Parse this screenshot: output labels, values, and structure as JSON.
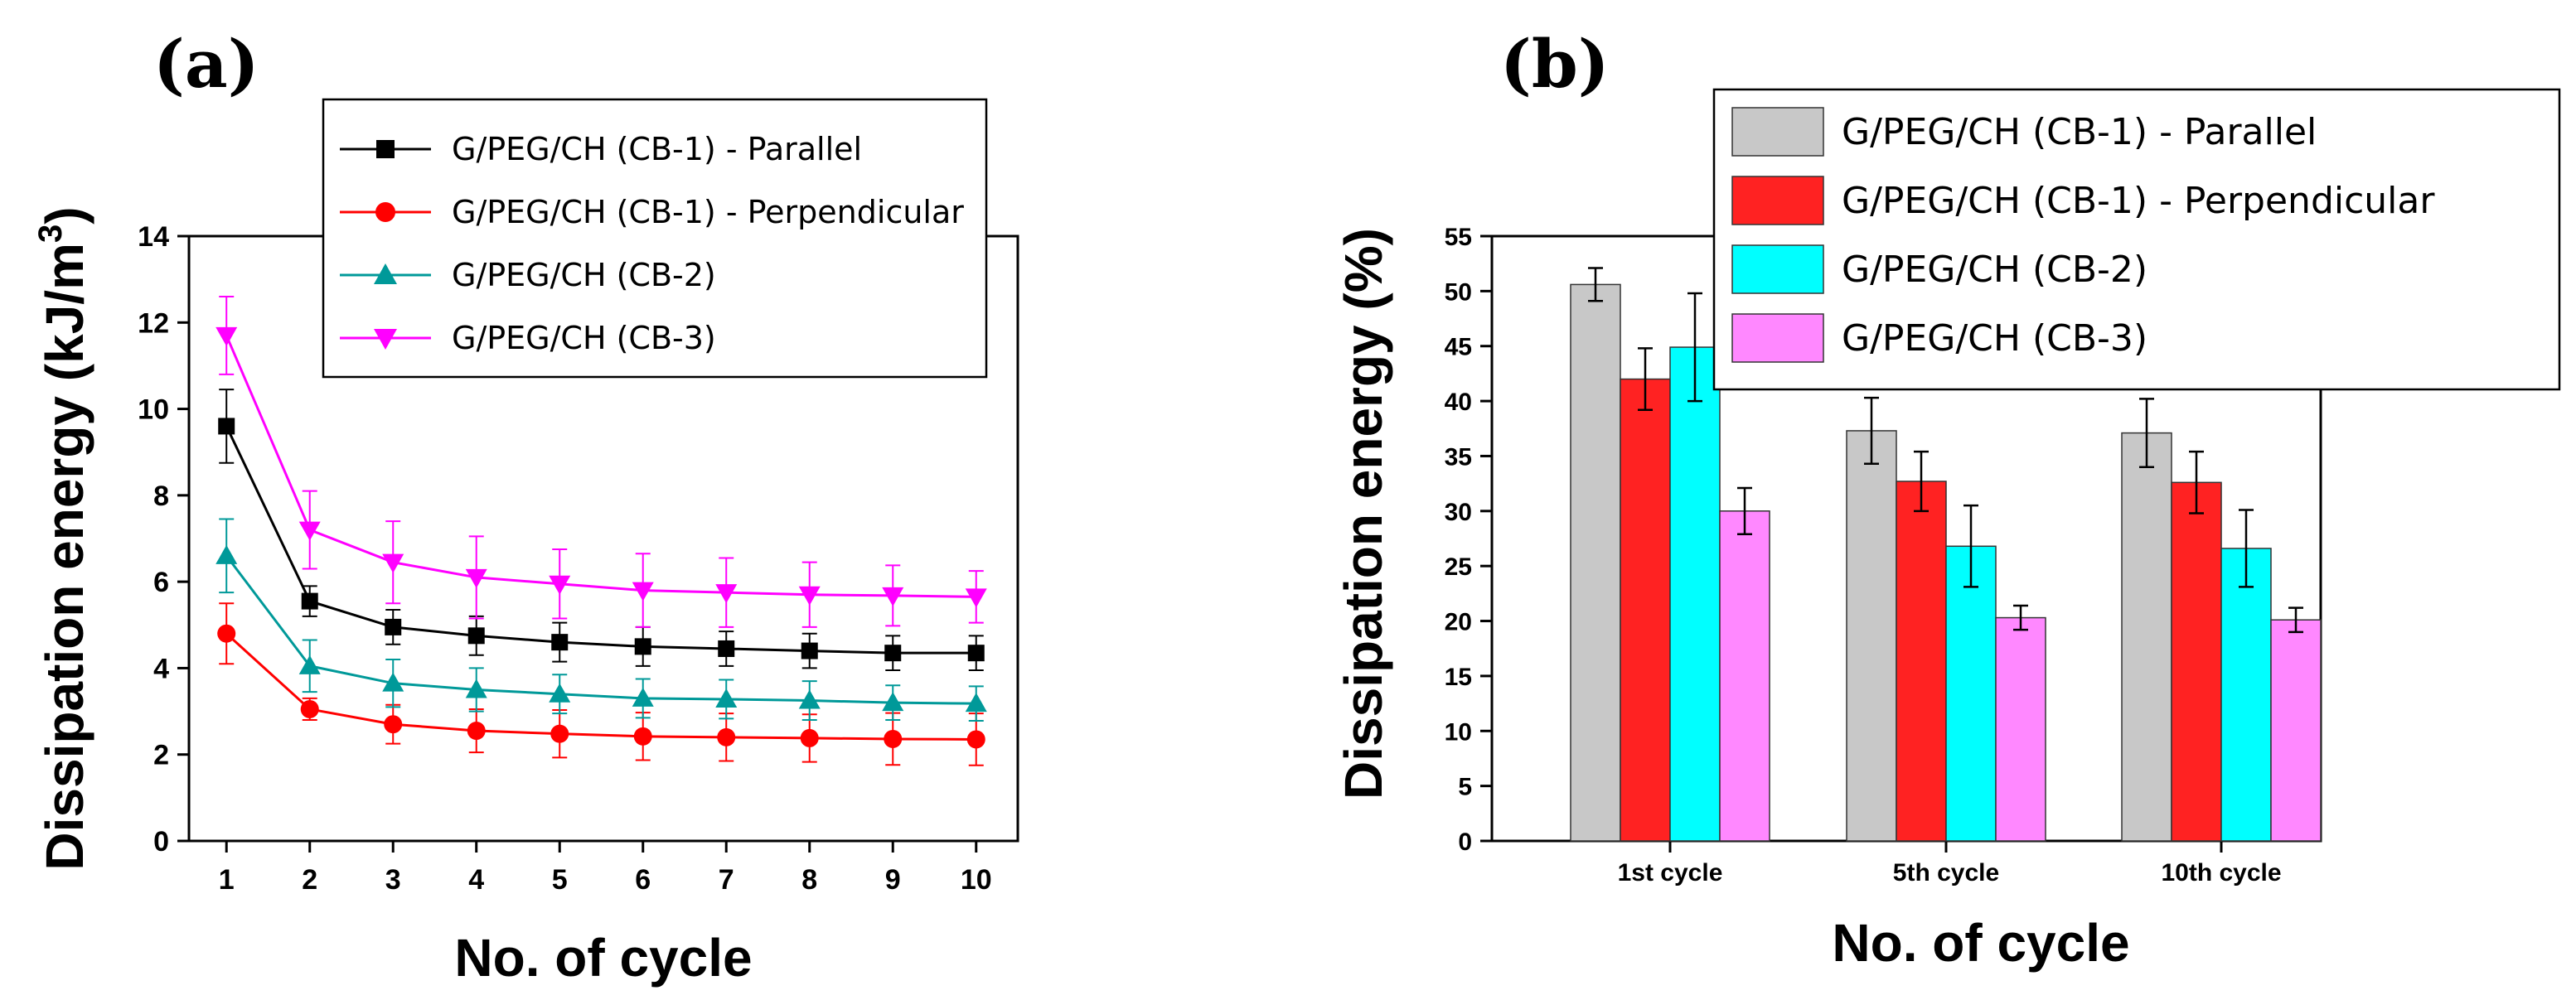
{
  "chart_data": [
    {
      "panel": "(a)",
      "type": "line",
      "xlabel": "No. of cycle",
      "ylabel": "Dissipation energy (kJ/m",
      "ylabel_sup": "3",
      "ylabel_close": ")",
      "x": [
        1,
        2,
        3,
        4,
        5,
        6,
        7,
        8,
        9,
        10
      ],
      "xlim": [
        0.55,
        10.5
      ],
      "ylim": [
        0,
        14
      ],
      "yticks": [
        0,
        2,
        4,
        6,
        8,
        10,
        12,
        14
      ],
      "series": [
        {
          "name": "G/PEG/CH (CB-1) - Parallel",
          "color": "#000000",
          "marker": "square",
          "values": [
            9.6,
            5.55,
            4.95,
            4.75,
            4.6,
            4.5,
            4.45,
            4.4,
            4.35,
            4.35
          ],
          "errors": [
            0.85,
            0.35,
            0.4,
            0.45,
            0.45,
            0.45,
            0.4,
            0.4,
            0.4,
            0.4
          ]
        },
        {
          "name": "G/PEG/CH (CB-1) - Perpendicular",
          "color": "#ff0000",
          "marker": "circle",
          "values": [
            4.8,
            3.05,
            2.7,
            2.55,
            2.48,
            2.42,
            2.4,
            2.38,
            2.36,
            2.35
          ],
          "errors": [
            0.7,
            0.25,
            0.45,
            0.5,
            0.55,
            0.55,
            0.55,
            0.55,
            0.6,
            0.6
          ]
        },
        {
          "name": "G/PEG/CH (CB-2)",
          "color": "#009999",
          "marker": "triangle-up",
          "values": [
            6.6,
            4.05,
            3.65,
            3.5,
            3.4,
            3.3,
            3.28,
            3.25,
            3.2,
            3.18
          ],
          "errors": [
            0.85,
            0.6,
            0.55,
            0.5,
            0.45,
            0.45,
            0.45,
            0.45,
            0.4,
            0.4
          ]
        },
        {
          "name": "G/PEG/CH (CB-3)",
          "color": "#ff00ff",
          "marker": "triangle-down",
          "values": [
            11.7,
            7.2,
            6.45,
            6.1,
            5.95,
            5.8,
            5.75,
            5.7,
            5.68,
            5.65
          ],
          "errors": [
            0.9,
            0.9,
            0.95,
            0.95,
            0.8,
            0.85,
            0.8,
            0.75,
            0.7,
            0.6
          ]
        }
      ],
      "legend": "top-right"
    },
    {
      "panel": "(b)",
      "type": "bar",
      "xlabel": "No. of cycle",
      "ylabel": "Dissipation energy (%)",
      "categories": [
        "1st cycle",
        "5th cycle",
        "10th cycle"
      ],
      "ylim": [
        0,
        55
      ],
      "yticks": [
        0,
        5,
        10,
        15,
        20,
        25,
        30,
        35,
        40,
        45,
        50,
        55
      ],
      "series": [
        {
          "name": "G/PEG/CH (CB-1) - Parallel",
          "color": "#c8c8c8",
          "values": [
            50.6,
            37.3,
            37.1
          ],
          "errors": [
            1.5,
            3.0,
            3.1
          ]
        },
        {
          "name": "G/PEG/CH (CB-1) - Perpendicular",
          "color": "#ff2222",
          "values": [
            42.0,
            32.7,
            32.6
          ],
          "errors": [
            2.8,
            2.7,
            2.8
          ]
        },
        {
          "name": "G/PEG/CH (CB-2)",
          "color": "#00ffff",
          "values": [
            44.9,
            26.8,
            26.6
          ],
          "errors": [
            4.9,
            3.7,
            3.5
          ]
        },
        {
          "name": "G/PEG/CH (CB-3)",
          "color": "#ff88ff",
          "values": [
            30.0,
            20.3,
            20.1
          ],
          "errors": [
            2.1,
            1.1,
            1.1
          ]
        }
      ],
      "legend": "top-right"
    }
  ]
}
